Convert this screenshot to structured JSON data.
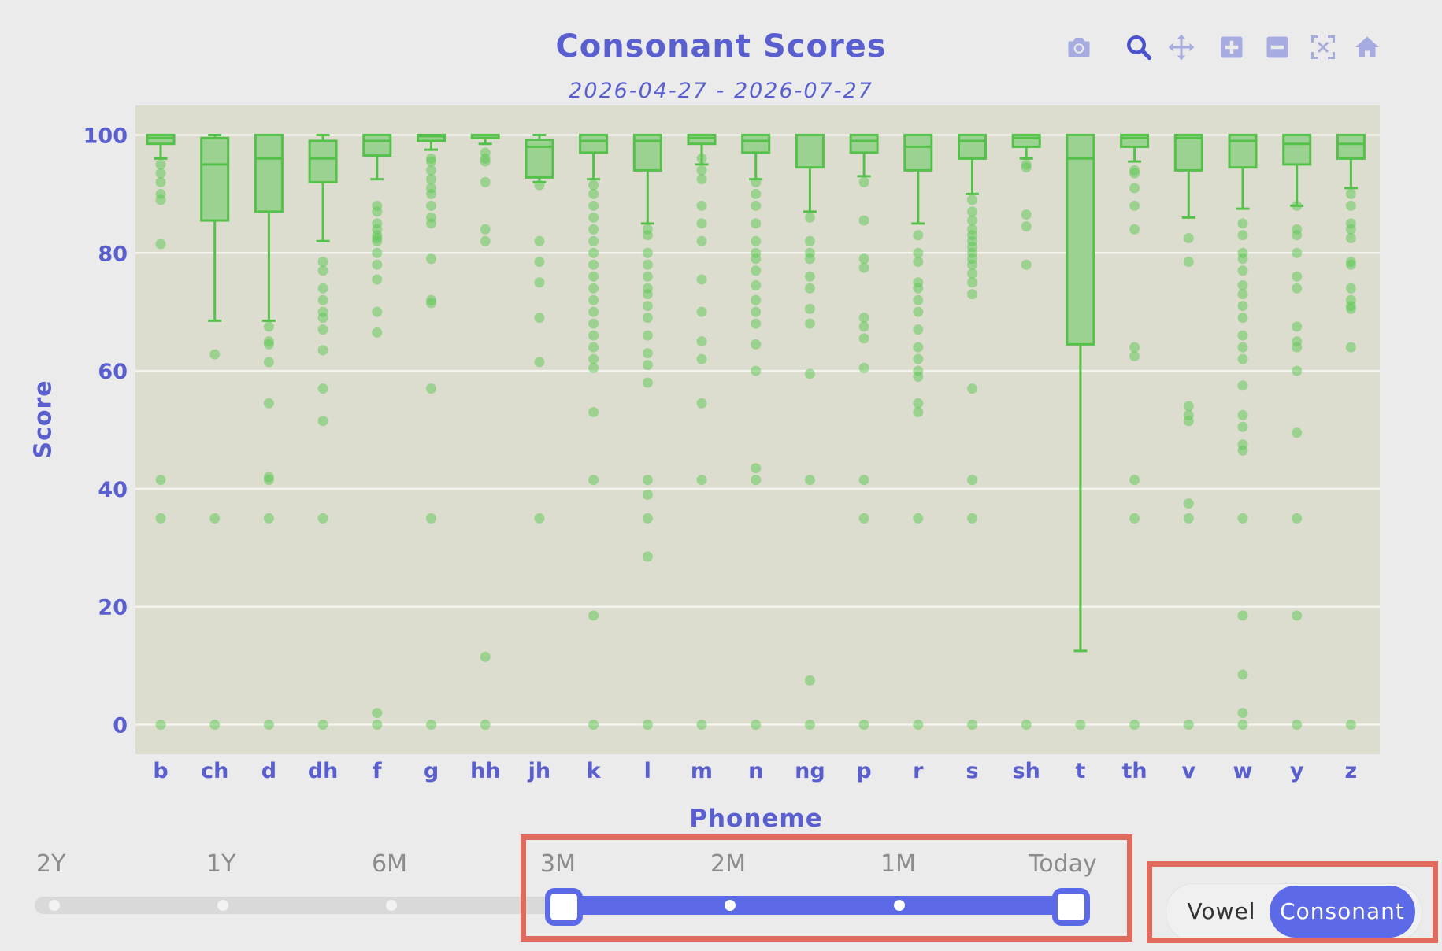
{
  "chart_data": {
    "type": "box",
    "title": "Consonant Scores",
    "subtitle": "2026-04-27 - 2026-07-27",
    "xlabel": "Phoneme",
    "ylabel": "Score",
    "ylim": [
      -5,
      105
    ],
    "yticks": [
      0,
      20,
      40,
      60,
      80,
      100
    ],
    "grid": true,
    "colors": {
      "box_fill": "#9bd191",
      "box_line": "#55c14a",
      "points": "#5cc751",
      "plot_bg": "#dcdccf",
      "axis_text": "#5a5fd0"
    },
    "categories": [
      "b",
      "ch",
      "d",
      "dh",
      "f",
      "g",
      "hh",
      "jh",
      "k",
      "l",
      "m",
      "n",
      "ng",
      "p",
      "r",
      "s",
      "sh",
      "t",
      "th",
      "v",
      "w",
      "y",
      "z"
    ],
    "boxes": [
      {
        "q1": 98.5,
        "median": 99.5,
        "q3": 100,
        "lower_whisker": 96,
        "upper_whisker": 100
      },
      {
        "q1": 85.5,
        "median": 95,
        "q3": 99.5,
        "lower_whisker": 68.5,
        "upper_whisker": 100
      },
      {
        "q1": 87,
        "median": 96,
        "q3": 100,
        "lower_whisker": 68.5,
        "upper_whisker": 100
      },
      {
        "q1": 92,
        "median": 96,
        "q3": 99,
        "lower_whisker": 82,
        "upper_whisker": 100
      },
      {
        "q1": 96.5,
        "median": 99,
        "q3": 100,
        "lower_whisker": 92.5,
        "upper_whisker": 100
      },
      {
        "q1": 99,
        "median": 99.8,
        "q3": 100,
        "lower_whisker": 97.5,
        "upper_whisker": 100
      },
      {
        "q1": 99.5,
        "median": 100,
        "q3": 100,
        "lower_whisker": 98.5,
        "upper_whisker": 100
      },
      {
        "q1": 92.8,
        "median": 98,
        "q3": 99.2,
        "lower_whisker": 92,
        "upper_whisker": 100
      },
      {
        "q1": 97,
        "median": 99,
        "q3": 100,
        "lower_whisker": 92.5,
        "upper_whisker": 100
      },
      {
        "q1": 94,
        "median": 99,
        "q3": 100,
        "lower_whisker": 85,
        "upper_whisker": 100
      },
      {
        "q1": 98.5,
        "median": 99.5,
        "q3": 100,
        "lower_whisker": 95,
        "upper_whisker": 100
      },
      {
        "q1": 97,
        "median": 99,
        "q3": 100,
        "lower_whisker": 92.5,
        "upper_whisker": 100
      },
      {
        "q1": 94.5,
        "median": 100,
        "q3": 100,
        "lower_whisker": 87,
        "upper_whisker": 100
      },
      {
        "q1": 97,
        "median": 99,
        "q3": 100,
        "lower_whisker": 93,
        "upper_whisker": 100
      },
      {
        "q1": 94,
        "median": 98,
        "q3": 100,
        "lower_whisker": 85,
        "upper_whisker": 100
      },
      {
        "q1": 96,
        "median": 99,
        "q3": 100,
        "lower_whisker": 90,
        "upper_whisker": 100
      },
      {
        "q1": 98,
        "median": 99.5,
        "q3": 100,
        "lower_whisker": 96,
        "upper_whisker": 100
      },
      {
        "q1": 64.5,
        "median": 96,
        "q3": 100,
        "lower_whisker": 12.5,
        "upper_whisker": 100
      },
      {
        "q1": 98,
        "median": 99.5,
        "q3": 100,
        "lower_whisker": 95.5,
        "upper_whisker": 100
      },
      {
        "q1": 94,
        "median": 99.5,
        "q3": 100,
        "lower_whisker": 86,
        "upper_whisker": 100
      },
      {
        "q1": 94.5,
        "median": 99,
        "q3": 100,
        "lower_whisker": 87.5,
        "upper_whisker": 100
      },
      {
        "q1": 95,
        "median": 98.5,
        "q3": 100,
        "lower_whisker": 88,
        "upper_whisker": 100
      },
      {
        "q1": 96,
        "median": 98.5,
        "q3": 100,
        "lower_whisker": 91,
        "upper_whisker": 100
      }
    ],
    "outliers": [
      [
        95,
        93.5,
        92,
        90,
        89,
        81.5,
        41.5,
        35,
        0
      ],
      [
        62.8,
        35,
        0
      ],
      [
        67.5,
        65,
        64.5,
        61.5,
        54.5,
        42,
        41.5,
        35,
        0
      ],
      [
        78.5,
        77,
        74,
        72,
        70,
        69,
        67,
        63.5,
        57,
        51.5,
        35,
        0
      ],
      [
        88,
        87,
        85,
        84,
        83,
        82.5,
        82,
        80,
        78,
        75.5,
        70,
        66.5,
        2,
        0
      ],
      [
        96,
        95.5,
        94,
        92.5,
        91,
        90,
        88,
        86,
        85,
        79,
        72,
        71.5,
        57,
        35,
        0
      ],
      [
        97,
        96,
        95.5,
        92,
        84,
        82,
        11.5,
        0
      ],
      [
        91.5,
        82,
        78.5,
        75,
        69,
        61.5,
        35
      ],
      [
        91.5,
        90,
        88,
        86,
        84,
        82,
        80,
        78,
        76,
        74,
        72,
        70,
        68,
        66,
        64,
        62,
        60.5,
        53,
        41.5,
        18.5,
        0
      ],
      [
        84,
        83,
        80,
        78,
        76,
        74,
        73,
        71,
        69,
        66,
        63,
        61,
        58,
        41.5,
        39,
        35,
        28.5,
        0
      ],
      [
        96,
        94,
        92.5,
        88,
        85,
        82,
        75.5,
        70,
        65,
        62,
        54.5,
        41.5,
        0
      ],
      [
        92,
        90,
        88,
        85,
        82,
        80,
        79,
        77,
        74.5,
        72,
        70,
        68,
        64.5,
        60,
        43.5,
        41.5,
        0
      ],
      [
        86,
        82,
        80,
        79,
        76,
        74,
        70.5,
        68,
        59.5,
        41.5,
        7.5,
        0
      ],
      [
        92,
        85.5,
        79,
        77.5,
        69,
        67.5,
        65.5,
        60.5,
        41.5,
        35,
        0
      ],
      [
        83,
        80,
        78.5,
        75,
        74,
        72,
        70,
        67,
        64,
        62,
        60,
        59,
        54.5,
        53,
        35,
        0
      ],
      [
        89,
        87,
        85.5,
        84,
        83,
        82,
        81,
        80,
        79,
        78,
        76.5,
        75,
        73,
        57,
        41.5,
        35,
        0
      ],
      [
        95,
        94.5,
        86.5,
        84.5,
        78,
        0
      ],
      [
        0
      ],
      [
        94,
        93.5,
        91,
        88,
        84,
        64,
        62.5,
        41.5,
        35,
        0
      ],
      [
        82.5,
        78.5,
        54,
        52.5,
        51.5,
        37.5,
        35,
        0
      ],
      [
        85,
        83,
        80,
        79,
        77,
        74.5,
        73,
        71,
        69,
        66,
        64,
        62,
        57.5,
        52.5,
        50.5,
        47.5,
        46.5,
        35,
        18.5,
        8.5,
        2,
        0
      ],
      [
        88,
        84,
        83,
        80,
        76,
        74,
        67.5,
        65,
        64,
        60,
        49.5,
        35,
        18.5,
        0
      ],
      [
        90,
        88,
        85,
        84,
        82.5,
        78.5,
        78,
        74,
        72,
        71,
        70.5,
        64,
        0
      ]
    ]
  },
  "modebar": {
    "icons": [
      "camera-icon",
      "zoom-icon",
      "pan-icon",
      "zoom-in-icon",
      "zoom-out-icon",
      "autoscale-icon",
      "home-icon"
    ]
  },
  "range_selector": {
    "labels": [
      "2Y",
      "1Y",
      "6M",
      "3M",
      "2M",
      "1M",
      "Today"
    ],
    "selected_start": "3M",
    "selected_end": "Today"
  },
  "toggle": {
    "options": [
      "Vowel",
      "Consonant"
    ],
    "selected": "Consonant"
  }
}
